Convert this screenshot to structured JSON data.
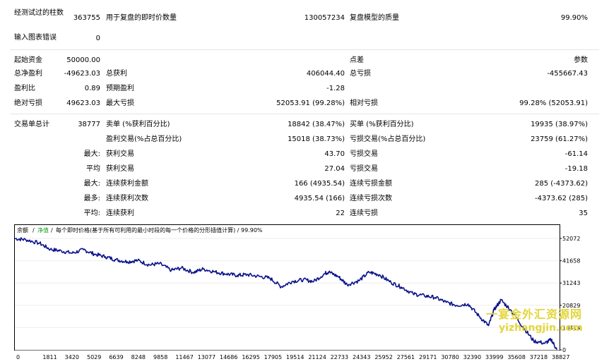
{
  "summary": {
    "tested_bars_label": "经测试过的柱数",
    "tested_bars": "363755",
    "ticks_label": "用于复盘的即时价数量",
    "ticks": "130057234",
    "quality_label": "复盘模型的质量",
    "quality": "99.90%",
    "errors_label": "输入图表错误",
    "errors": "0"
  },
  "stats": {
    "initial_deposit_label": "起始资金",
    "initial_deposit": "50000.00",
    "spread_label": "点差",
    "spread": "参数",
    "net_profit_label": "总净盈利",
    "net_profit": "-49623.03",
    "gross_profit_label": "总获利",
    "gross_profit": "406044.40",
    "gross_loss_label": "总亏损",
    "gross_loss": "-455667.43",
    "profit_factor_label": "盈利比",
    "profit_factor": "0.89",
    "expected_payoff_label": "预期盈利",
    "expected_payoff": "-1.28",
    "abs_drawdown_label": "绝对亏损",
    "abs_drawdown": "49623.03",
    "max_drawdown_label": "最大亏损",
    "max_drawdown": "52053.91 (99.28%)",
    "rel_drawdown_label": "相对亏损",
    "rel_drawdown": "99.28% (52053.91)",
    "total_trades_label": "交易单总计",
    "total_trades": "38777",
    "short_label": "卖单 (%获利百分比)",
    "short": "18842 (38.47%)",
    "long_label": "买单 (%获利百分比)",
    "long": "19935 (38.97%)",
    "profit_trades_label": "盈利交易(%占总百分比)",
    "profit_trades": "15018 (38.73%)",
    "loss_trades_label": "亏损交易(%占总百分比)",
    "loss_trades": "23759 (61.27%)",
    "largest_label": "最大:",
    "largest_profit_label": "获利交易",
    "largest_profit": "43.70",
    "largest_loss_label": "亏损交易",
    "largest_loss": "-61.14",
    "average_label": "平均",
    "average_profit_label": "获利交易",
    "average_profit": "27.04",
    "average_loss_label": "亏损交易",
    "average_loss": "-19.18",
    "max_consec_label": "最大:",
    "max_consec_wins_label": "连续获利金额",
    "max_consec_wins": "166 (4935.54)",
    "max_consec_losses_label": "连续亏损金额",
    "max_consec_losses": "285 (-4373.62)",
    "most_label": "最多:",
    "most_consec_profit_label": "连续获利次数",
    "most_consec_profit": "4935.54 (166)",
    "most_consec_loss_label": "连续亏损次数",
    "most_consec_loss": "-4373.62 (285)",
    "avg_consec_label": "平均:",
    "avg_consec_wins_label": "连续获利",
    "avg_consec_wins": "22",
    "avg_consec_losses_label": "连续亏损",
    "avg_consec_losses": "35"
  },
  "chart_header": {
    "balance": "余额",
    "equity": "净值",
    "text": "每个即时价格(基于所有可利用的最小时段的每一个价格的分形插值计算) / 99.90%"
  },
  "watermark": {
    "line1": "一宴金外汇资源网",
    "line2": "yizhangjin.com"
  },
  "chart_data": {
    "type": "line",
    "title": "",
    "xlabel": "",
    "ylabel": "",
    "x_ticks": [
      "0",
      "1811",
      "3420",
      "5029",
      "6639",
      "8248",
      "9858",
      "11467",
      "13077",
      "14686",
      "16295",
      "17905",
      "19514",
      "21124",
      "22733",
      "24343",
      "25952",
      "27561",
      "29171",
      "30780",
      "32390",
      "33999",
      "35608",
      "37218",
      "38827"
    ],
    "y_ticks": [
      52072,
      41658,
      31243,
      20829,
      10414,
      0
    ],
    "ylim": [
      0,
      52072
    ],
    "xlim": [
      0,
      39900
    ],
    "series": [
      {
        "color": "#0a128a",
        "x": [
          0,
          800,
          1811,
          2600,
          3420,
          4200,
          5029,
          5800,
          6639,
          7400,
          8248,
          9000,
          9858,
          10600,
          11467,
          12200,
          13077,
          13800,
          14686,
          15500,
          16295,
          17000,
          17905,
          18700,
          19514,
          20300,
          21124,
          21900,
          22733,
          23000,
          23700,
          24343,
          25200,
          25952,
          26700,
          27561,
          28300,
          29171,
          30000,
          30780,
          31600,
          32390,
          33200,
          33999,
          34700,
          35100,
          35608,
          36300,
          37218,
          38000,
          38827,
          39300,
          39700
        ],
        "y": [
          52000,
          51500,
          49800,
          47000,
          46200,
          45200,
          46800,
          44800,
          43500,
          42100,
          41200,
          41800,
          39700,
          40300,
          37200,
          38300,
          36200,
          37800,
          36400,
          35500,
          34800,
          35200,
          34300,
          33500,
          29500,
          32000,
          32800,
          32000,
          35800,
          36400,
          34200,
          30500,
          32300,
          36300,
          35100,
          31500,
          29400,
          26200,
          25300,
          24500,
          22200,
          20800,
          21500,
          15800,
          11300,
          18700,
          23300,
          18800,
          10800,
          4200,
          3100,
          4800,
          100
        ]
      }
    ]
  }
}
